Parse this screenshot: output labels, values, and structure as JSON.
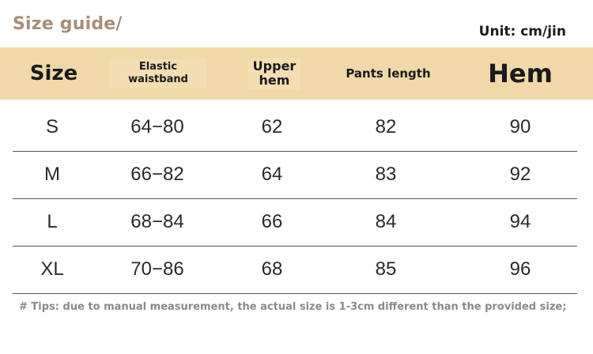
{
  "title": "Size guide/",
  "unit": "Unit: cm/jin",
  "columns": {
    "size": "Size",
    "elastic_line1": "Elastic",
    "elastic_line2": "waistband",
    "upper_line1": "Upper",
    "upper_line2": "hem",
    "pants_length": "Pants length",
    "hem": "Hem"
  },
  "rows": [
    {
      "size": "S",
      "waistband": "64−80",
      "upper_hem": "62",
      "pants_length": "82",
      "hem": "90"
    },
    {
      "size": "M",
      "waistband": "66−82",
      "upper_hem": "64",
      "pants_length": "83",
      "hem": "92"
    },
    {
      "size": "L",
      "waistband": "68−84",
      "upper_hem": "66",
      "pants_length": "84",
      "hem": "94"
    },
    {
      "size": "XL",
      "waistband": "70−86",
      "upper_hem": "68",
      "pants_length": "85",
      "hem": "96"
    }
  ],
  "tips": "# Tips: due to manual measurement, the actual size is 1-3cm different than the provided size;",
  "colors": {
    "header_band": "#f0d8a8",
    "title": "#a48f77"
  }
}
